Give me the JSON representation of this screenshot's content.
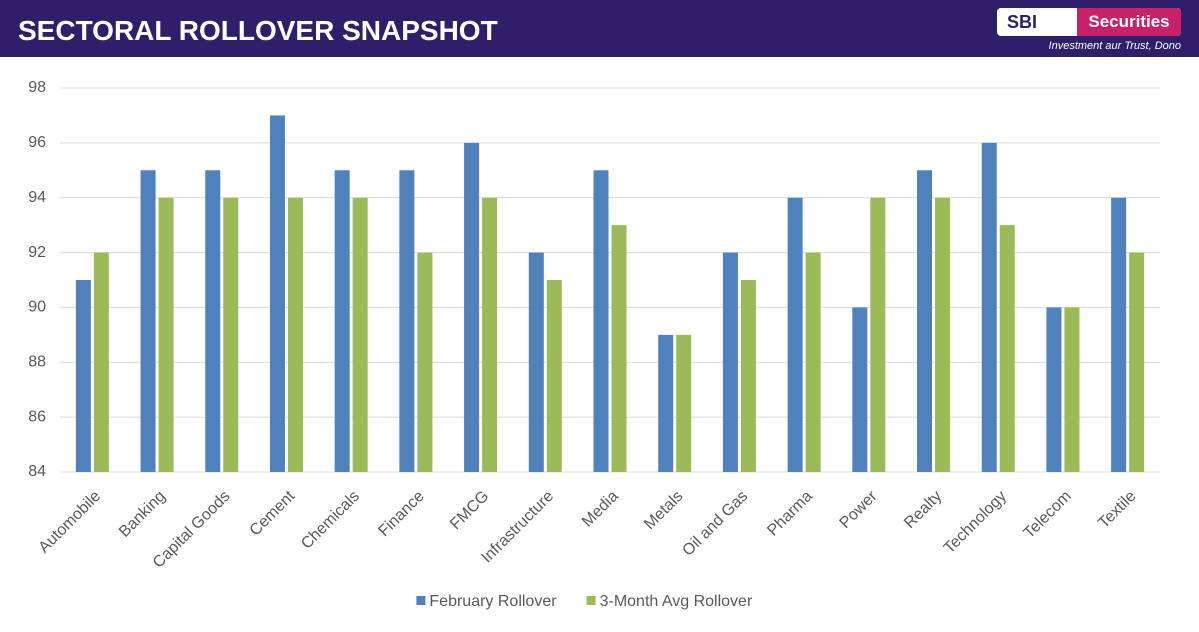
{
  "header": {
    "title": "SECTORAL ROLLOVER SNAPSHOT",
    "logo_left": "SBI",
    "logo_right": "Securities",
    "tagline": "Investment aur Trust, Dono"
  },
  "chart_data": {
    "type": "bar",
    "categories": [
      "Automobile",
      "Banking",
      "Capital Goods",
      "Cement",
      "Chemicals",
      "Finance",
      "FMCG",
      "Infrastructure",
      "Media",
      "Metals",
      "Oil and Gas",
      "Pharma",
      "Power",
      "Realty",
      "Technology",
      "Telecom",
      "Textile"
    ],
    "series": [
      {
        "name": "February Rollover",
        "color": "#4f81bd",
        "values": [
          91,
          95,
          95,
          97,
          95,
          95,
          96,
          92,
          95,
          89,
          92,
          94,
          90,
          95,
          96,
          90,
          94
        ]
      },
      {
        "name": "3-Month Avg Rollover",
        "color": "#9bbb59",
        "values": [
          92,
          94,
          94,
          94,
          94,
          92,
          94,
          91,
          93,
          89,
          91,
          92,
          94,
          94,
          93,
          90,
          92
        ]
      }
    ],
    "ylim": [
      84,
      98
    ],
    "yticks": [
      84,
      86,
      88,
      90,
      92,
      94,
      96,
      98
    ],
    "grid": true,
    "legend": "bottom"
  }
}
